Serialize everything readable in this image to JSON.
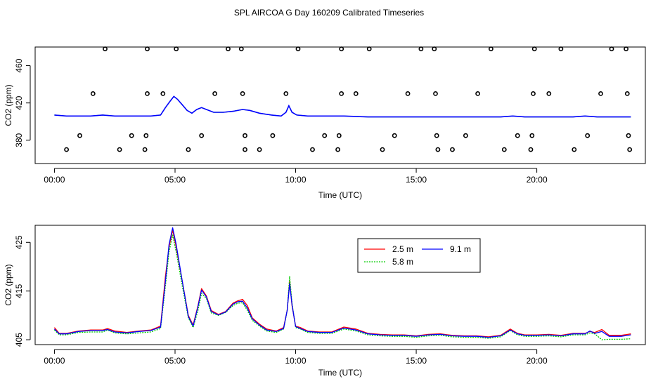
{
  "title": "SPL AIRCOA G  Day 160209  Calibrated Timeseries",
  "chart_data": [
    {
      "type": "scatter",
      "xlabel": "Time (UTC)",
      "ylabel": "CO2 (ppm)",
      "xlim": [
        -0.8,
        24.5
      ],
      "ylim": [
        355,
        480
      ],
      "x_ticks": [
        0,
        5,
        10,
        15,
        20
      ],
      "x_tick_labels": [
        "00:00",
        "05:00",
        "10:00",
        "15:00",
        "20:00"
      ],
      "y_ticks": [
        380,
        420,
        460
      ],
      "y_tick_labels": [
        "380",
        "420",
        "460"
      ],
      "line": {
        "name": "calibrated CO2",
        "x": [
          0,
          0.5,
          1,
          1.5,
          2,
          2.5,
          3,
          3.5,
          4,
          4.4,
          4.6,
          4.8,
          4.95,
          5.1,
          5.3,
          5.5,
          5.7,
          5.9,
          6.1,
          6.3,
          6.6,
          7,
          7.4,
          7.8,
          8.1,
          8.5,
          9,
          9.4,
          9.6,
          9.72,
          9.85,
          10.05,
          10.5,
          11,
          11.5,
          12,
          13,
          14,
          15,
          16,
          17,
          18,
          18.5,
          19,
          19.5,
          20,
          21,
          21.5,
          22,
          22.5,
          23,
          23.9
        ],
        "values": [
          407,
          406,
          406,
          406,
          407,
          406,
          406,
          406,
          406,
          407,
          415,
          422,
          427,
          424,
          418,
          412,
          409,
          413,
          415,
          413,
          410,
          410,
          411,
          413,
          412,
          409,
          407,
          406,
          410,
          417,
          410,
          407,
          406,
          406,
          406,
          406,
          405,
          405,
          405,
          405,
          405,
          405,
          405,
          406,
          405,
          405,
          405,
          405,
          406,
          405,
          405,
          405
        ]
      },
      "points": {
        "x": [
          0.5,
          1.05,
          1.6,
          2.1,
          2.7,
          3.2,
          3.75,
          3.8,
          3.85,
          3.85,
          4.5,
          5.05,
          5.55,
          6.1,
          6.65,
          7.2,
          7.75,
          7.8,
          7.9,
          7.9,
          8.5,
          9.05,
          9.6,
          10.1,
          10.7,
          11.2,
          11.75,
          11.8,
          11.9,
          11.9,
          12.5,
          13.05,
          13.6,
          14.1,
          14.65,
          15.2,
          15.75,
          15.8,
          15.85,
          15.9,
          16.5,
          17.05,
          17.55,
          18.1,
          18.65,
          19.2,
          19.75,
          19.8,
          19.85,
          19.9,
          20.5,
          21,
          21.55,
          22.1,
          22.65,
          23.1,
          23.7,
          23.75,
          23.8,
          23.85
        ],
        "values": [
          370,
          385,
          430,
          478,
          370,
          385,
          370,
          385,
          430,
          478,
          430,
          478,
          370,
          385,
          430,
          478,
          478,
          430,
          385,
          370,
          370,
          385,
          430,
          478,
          370,
          385,
          370,
          385,
          430,
          478,
          430,
          478,
          370,
          385,
          430,
          478,
          478,
          430,
          385,
          370,
          370,
          385,
          430,
          478,
          370,
          385,
          370,
          385,
          430,
          478,
          430,
          478,
          370,
          385,
          430,
          478,
          478,
          430,
          385,
          370
        ]
      }
    },
    {
      "type": "line",
      "xlabel": "Time (UTC)",
      "ylabel": "CO2 (ppm)",
      "xlim": [
        -0.8,
        24.5
      ],
      "ylim": [
        404,
        428.5
      ],
      "x_ticks": [
        0,
        5,
        10,
        15,
        20
      ],
      "x_tick_labels": [
        "00:00",
        "05:00",
        "10:00",
        "15:00",
        "20:00"
      ],
      "y_ticks": [
        405,
        415,
        425
      ],
      "y_tick_labels": [
        "405",
        "415",
        "425"
      ],
      "legend_position": "top-center",
      "x": [
        0,
        0.2,
        0.5,
        1,
        1.5,
        2,
        2.2,
        2.5,
        3,
        3.5,
        4,
        4.4,
        4.6,
        4.75,
        4.9,
        5.05,
        5.3,
        5.55,
        5.75,
        5.95,
        6.1,
        6.3,
        6.5,
        6.8,
        7.1,
        7.4,
        7.6,
        7.8,
        8,
        8.2,
        8.5,
        8.8,
        9.2,
        9.5,
        9.65,
        9.75,
        9.85,
        10,
        10.2,
        10.5,
        11,
        11.5,
        12,
        12.5,
        13,
        13.5,
        14,
        14.5,
        15,
        15.5,
        16,
        16.5,
        17,
        17.5,
        18,
        18.5,
        18.9,
        19.2,
        19.5,
        20,
        20.5,
        21,
        21.5,
        22,
        22.2,
        22.4,
        22.7,
        23,
        23.5,
        23.9
      ],
      "series": [
        {
          "name": "2.5 m",
          "color": "#ff0000",
          "values": [
            407.5,
            406.3,
            406.3,
            406.8,
            407.0,
            407.0,
            407.3,
            406.8,
            406.5,
            406.8,
            407.0,
            407.8,
            418,
            424,
            427.5,
            424,
            417,
            410,
            408,
            412,
            415.5,
            414,
            411,
            410.2,
            410.8,
            412.5,
            413,
            413.3,
            412,
            409.5,
            408.2,
            407.2,
            406.8,
            407.5,
            411,
            417,
            412,
            407.8,
            407.5,
            406.8,
            406.6,
            406.6,
            407.6,
            407.2,
            406.3,
            406.1,
            406.0,
            406.0,
            405.8,
            406.1,
            406.2,
            405.9,
            405.8,
            405.8,
            405.6,
            405.9,
            407.2,
            406.3,
            406.0,
            406.0,
            406.1,
            405.9,
            406.3,
            406.3,
            406.7,
            406.5,
            407.1,
            405.9,
            405.9,
            406.2
          ]
        },
        {
          "name": "5.8 m",
          "color": "#00cc00",
          "values": [
            407.0,
            406.0,
            406.0,
            406.5,
            406.6,
            406.6,
            407.0,
            406.4,
            406.2,
            406.4,
            406.6,
            407.3,
            416,
            423,
            426.5,
            423,
            416,
            409.5,
            407.5,
            411,
            414.5,
            413.5,
            410.5,
            410.0,
            410.6,
            412,
            412.5,
            412.6,
            411,
            409,
            407.8,
            406.8,
            406.5,
            407.2,
            411,
            418,
            412.5,
            407.5,
            407.2,
            406.5,
            406.3,
            406.3,
            407.2,
            406.8,
            406.0,
            405.8,
            405.7,
            405.7,
            405.5,
            405.8,
            405.9,
            405.6,
            405.5,
            405.5,
            405.3,
            405.6,
            406.9,
            406.0,
            405.7,
            405.7,
            405.8,
            405.6,
            406.0,
            406.0,
            406.4,
            406.2,
            405.0,
            405.1,
            405.1,
            405.2
          ]
        },
        {
          "name": "9.1 m",
          "color": "#0000ff",
          "values": [
            407.2,
            406.2,
            406.2,
            406.7,
            406.9,
            406.9,
            407.1,
            406.6,
            406.4,
            406.7,
            406.9,
            407.6,
            417,
            424.5,
            428,
            424.5,
            417,
            409.8,
            407.8,
            411.8,
            415.2,
            413.8,
            410.8,
            410.1,
            410.7,
            412.3,
            412.8,
            412.9,
            411.5,
            409.3,
            408.0,
            407.0,
            406.7,
            407.3,
            411,
            416.5,
            412.2,
            407.7,
            407.3,
            406.7,
            406.5,
            406.5,
            407.4,
            407.0,
            406.2,
            406.0,
            405.9,
            405.9,
            405.7,
            406.0,
            406.1,
            405.8,
            405.7,
            405.7,
            405.5,
            405.8,
            407.0,
            406.2,
            405.9,
            405.9,
            406.0,
            405.8,
            406.2,
            406.2,
            406.8,
            406.3,
            406.7,
            405.7,
            405.7,
            406.0
          ]
        }
      ]
    }
  ]
}
